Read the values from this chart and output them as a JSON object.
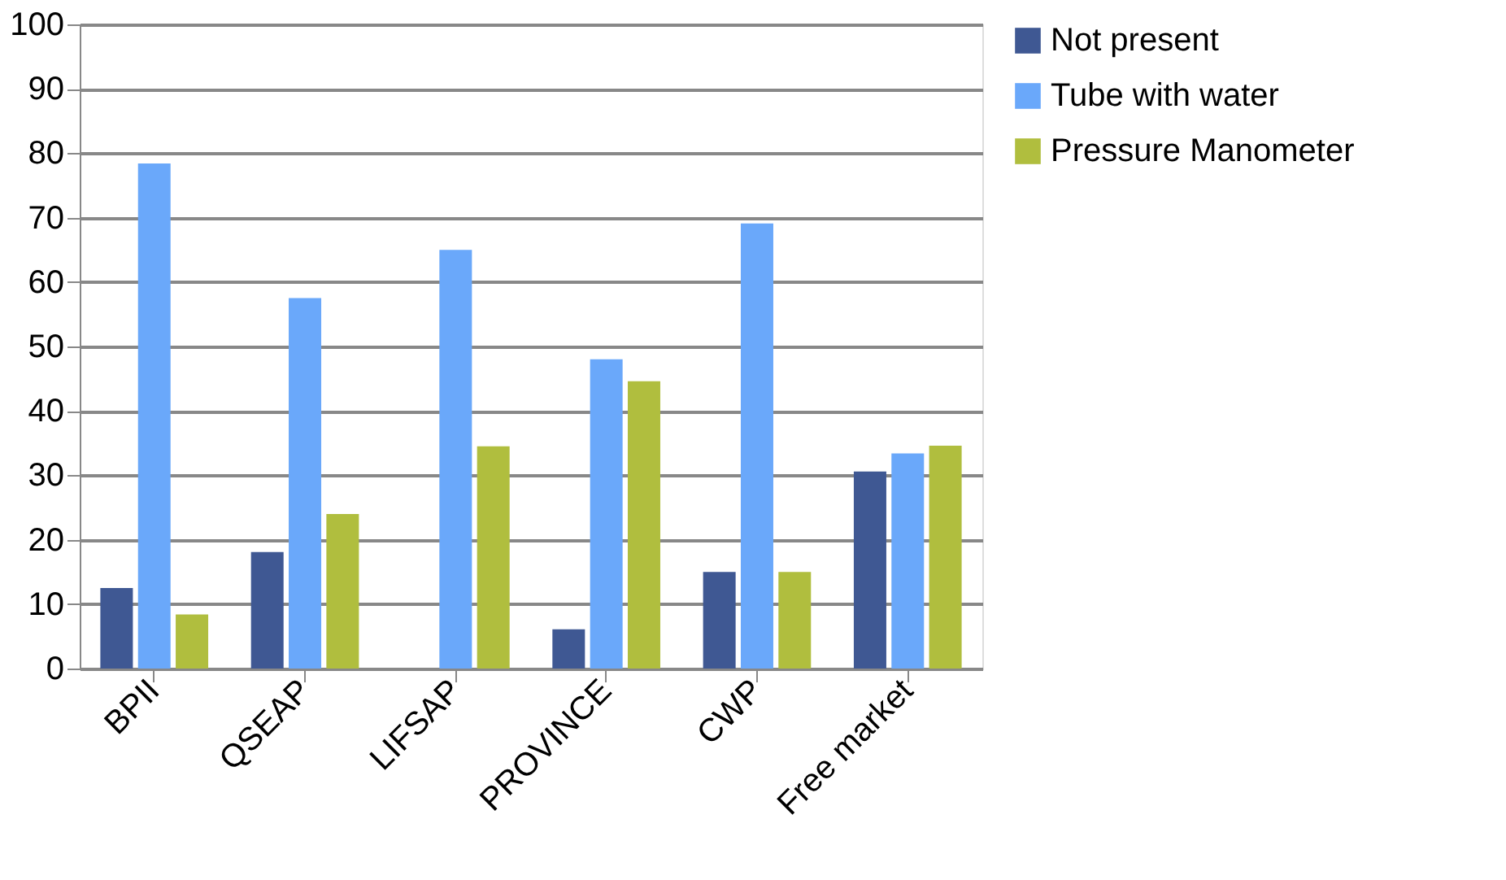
{
  "chart_data": {
    "type": "bar",
    "categories": [
      "BPII",
      "QSEAP",
      "LIFSAP",
      "PROVINCE",
      "CWP",
      "Free market"
    ],
    "series": [
      {
        "name": "Not present",
        "color": "#3f5893",
        "values": [
          12.5,
          18.1,
          0,
          6.1,
          15.0,
          30.6
        ]
      },
      {
        "name": "Tube with water",
        "color": "#6aa8fa",
        "values": [
          78.4,
          57.5,
          65.0,
          48.0,
          69.1,
          33.4
        ]
      },
      {
        "name": "Pressure Manometer",
        "color": "#b0be3e",
        "values": [
          8.4,
          24.0,
          34.5,
          44.6,
          15.0,
          34.6
        ]
      }
    ],
    "ylim": [
      0,
      100
    ],
    "yticks": [
      0,
      10,
      20,
      30,
      40,
      50,
      60,
      70,
      80,
      90,
      100
    ],
    "grid": "y",
    "legend": "right"
  }
}
